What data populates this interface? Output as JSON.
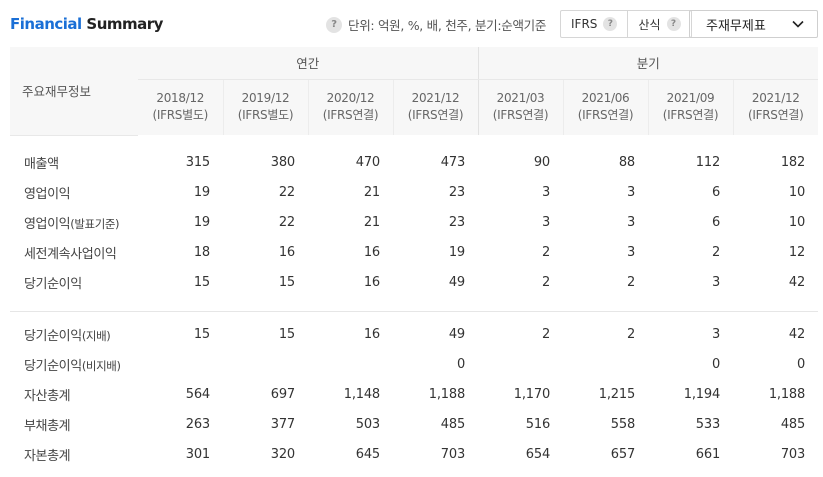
{
  "header": {
    "title_accent": "Financial",
    "title_rest": " Summary",
    "unit_text": "단위: 억원, %, 배, 천주, 분기:순액기준",
    "toggle": [
      {
        "label": "IFRS"
      },
      {
        "label": "산식"
      }
    ],
    "select_value": "주재무제표"
  },
  "table": {
    "corner_label": "주요재무정보",
    "group_annual": "연간",
    "group_quarter": "분기",
    "columns": [
      {
        "period": "2018/12",
        "basis": "(IFRS별도)"
      },
      {
        "period": "2019/12",
        "basis": "(IFRS별도)"
      },
      {
        "period": "2020/12",
        "basis": "(IFRS연결)"
      },
      {
        "period": "2021/12",
        "basis": "(IFRS연결)"
      },
      {
        "period": "2021/03",
        "basis": "(IFRS연결)"
      },
      {
        "period": "2021/06",
        "basis": "(IFRS연결)"
      },
      {
        "period": "2021/09",
        "basis": "(IFRS연결)"
      },
      {
        "period": "2021/12",
        "basis": "(IFRS연결)"
      }
    ],
    "rows_a": [
      {
        "label": "매출액",
        "sub": "",
        "values": [
          "315",
          "380",
          "470",
          "473",
          "90",
          "88",
          "112",
          "182"
        ]
      },
      {
        "label": "영업이익",
        "sub": "",
        "values": [
          "19",
          "22",
          "21",
          "23",
          "3",
          "3",
          "6",
          "10"
        ]
      },
      {
        "label": "영업이익",
        "sub": "(발표기준)",
        "values": [
          "19",
          "22",
          "21",
          "23",
          "3",
          "3",
          "6",
          "10"
        ]
      },
      {
        "label": "세전계속사업이익",
        "sub": "",
        "values": [
          "18",
          "16",
          "16",
          "19",
          "2",
          "3",
          "2",
          "12"
        ]
      },
      {
        "label": "당기순이익",
        "sub": "",
        "values": [
          "15",
          "15",
          "16",
          "49",
          "2",
          "2",
          "3",
          "42"
        ]
      }
    ],
    "rows_b": [
      {
        "label": "당기순이익",
        "sub": "(지배)",
        "values": [
          "15",
          "15",
          "16",
          "49",
          "2",
          "2",
          "3",
          "42"
        ]
      },
      {
        "label": "당기순이익",
        "sub": "(비지배)",
        "values": [
          "",
          "",
          "",
          "0",
          "",
          "",
          "0",
          "0"
        ]
      },
      {
        "label": "자산총계",
        "sub": "",
        "values": [
          "564",
          "697",
          "1,148",
          "1,188",
          "1,170",
          "1,215",
          "1,194",
          "1,188"
        ]
      },
      {
        "label": "부채총계",
        "sub": "",
        "values": [
          "263",
          "377",
          "503",
          "485",
          "516",
          "558",
          "533",
          "485"
        ]
      },
      {
        "label": "자본총계",
        "sub": "",
        "values": [
          "301",
          "320",
          "645",
          "703",
          "654",
          "657",
          "661",
          "703"
        ]
      }
    ]
  }
}
